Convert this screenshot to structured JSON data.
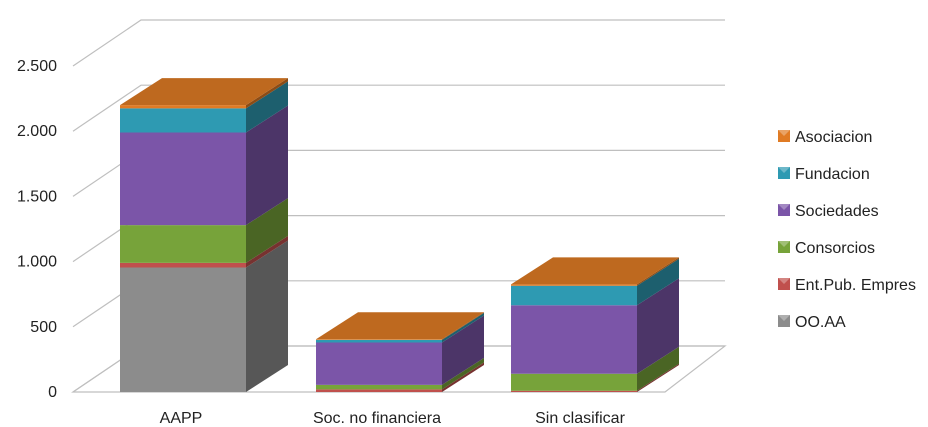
{
  "chart_data": {
    "type": "bar",
    "stacked": true,
    "three_d": true,
    "title": "",
    "xlabel": "",
    "ylabel": "",
    "categories": [
      "AAPP",
      "Soc. no financiera",
      "Sin clasificar"
    ],
    "ylim": [
      0,
      2500
    ],
    "y_ticks": [
      0,
      500,
      1000,
      1500,
      2000,
      2500
    ],
    "y_tick_labels": [
      "0",
      "500",
      "1.000",
      "1.500",
      "2.000",
      "2.500"
    ],
    "grid": true,
    "legend_position": "right",
    "series": [
      {
        "name": "OO.AA",
        "color": "#8c8c8c",
        "values": [
          955,
          0,
          0
        ]
      },
      {
        "name": "Ent.Pub. Empres",
        "color": "#c0504d",
        "values": [
          35,
          20,
          10
        ]
      },
      {
        "name": "Consorcios",
        "color": "#77a33a",
        "values": [
          290,
          35,
          130
        ]
      },
      {
        "name": "Sociedades",
        "color": "#7b55a8",
        "values": [
          710,
          325,
          525
        ]
      },
      {
        "name": "Fundacion",
        "color": "#2e9ab2",
        "values": [
          185,
          20,
          150
        ]
      },
      {
        "name": "Asociacion",
        "color": "#e07b24",
        "values": [
          25,
          5,
          10
        ]
      }
    ]
  }
}
